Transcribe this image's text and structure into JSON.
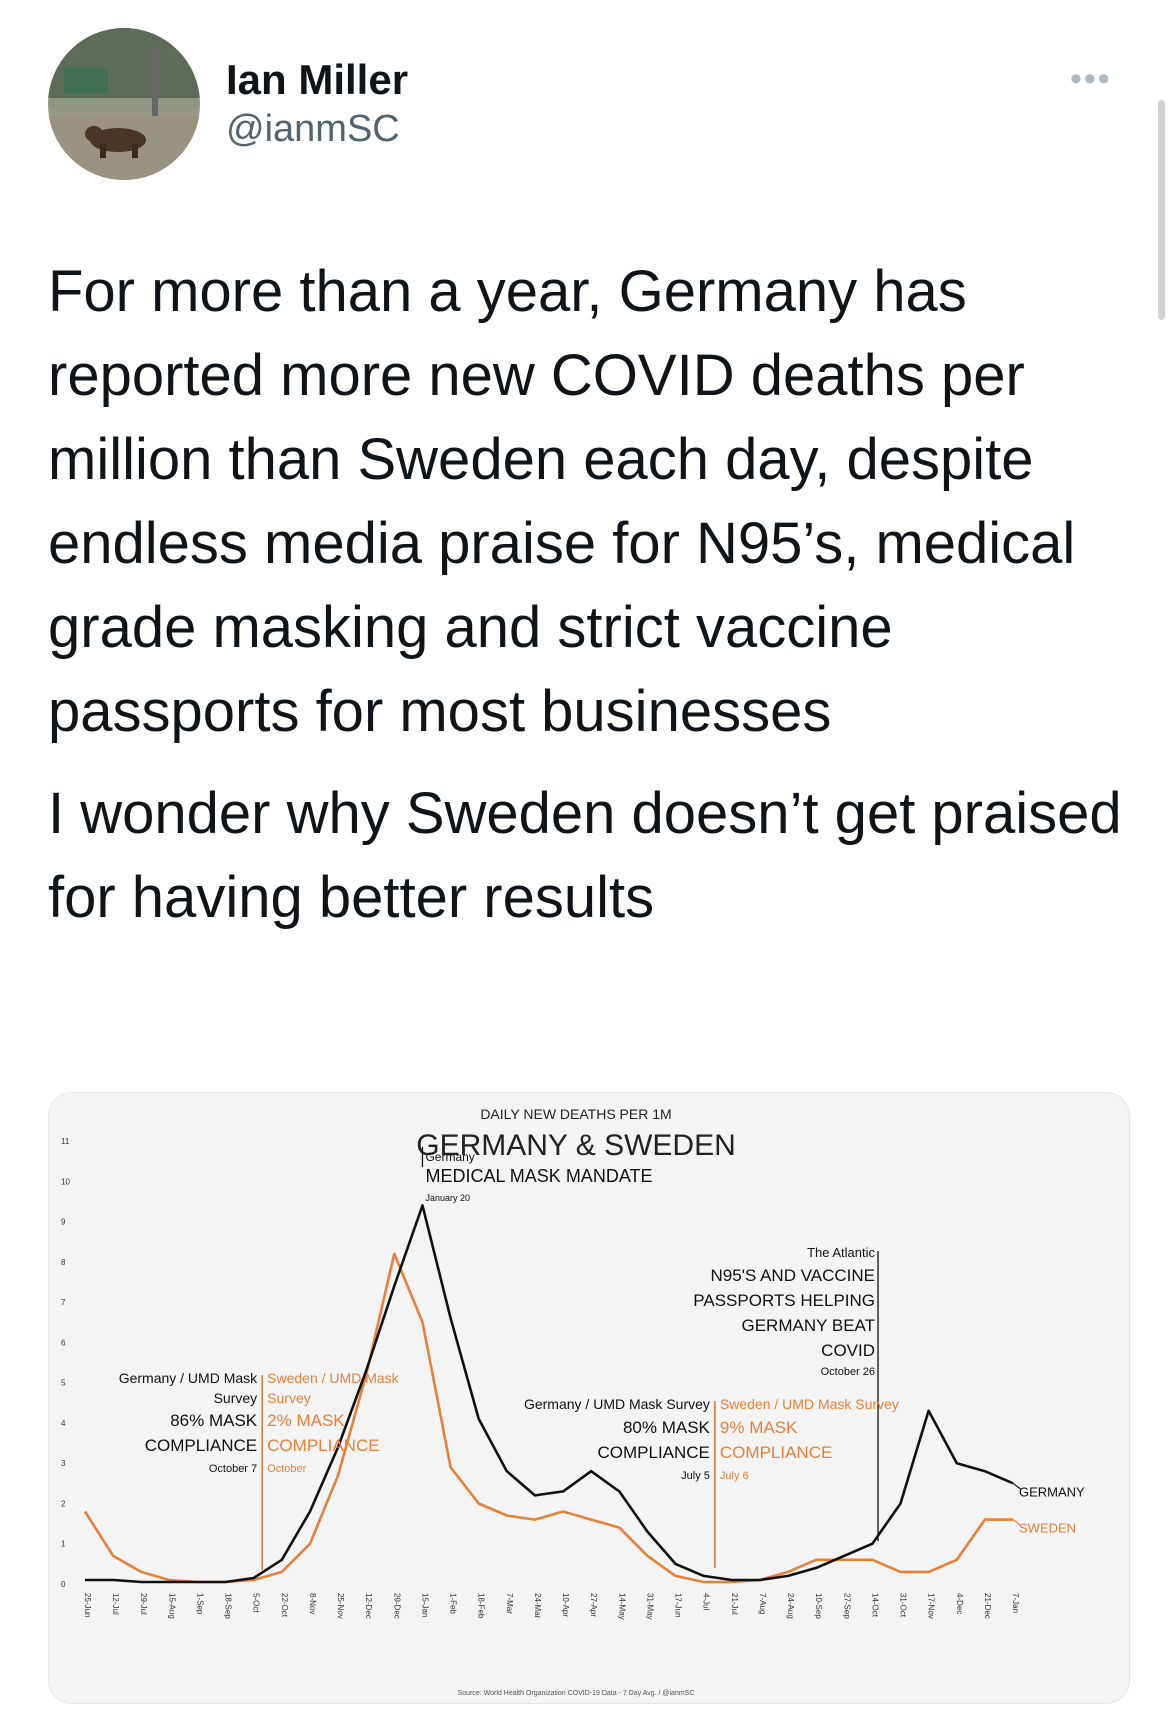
{
  "tweet": {
    "author_name": "Ian Miller",
    "author_handle": "@ianmSC",
    "more_icon": "more-horizontal-icon",
    "paragraphs": [
      "For more than a year, Germany has reported more new COVID deaths per million than Sweden each day, despite endless media praise for N95’s, medical grade masking and strict vaccine passports for most businesses",
      "I wonder why Sweden doesn’t get praised for having better results"
    ]
  },
  "chart_data": {
    "type": "line",
    "supertitle": "DAILY NEW DEATHS PER 1M",
    "title": "GERMANY & SWEDEN",
    "source": "Source: World Health Organization COVID-19 Data - 7 Day Avg. / @ianmSC",
    "ylim": [
      0,
      11
    ],
    "yticks": [
      "0",
      "1",
      "2",
      "3",
      "4",
      "5",
      "6",
      "7",
      "8",
      "9",
      "10",
      "11"
    ],
    "grid": false,
    "colors": {
      "Germany": "#111111",
      "Sweden": "#e8803a"
    },
    "categories": [
      "25-Jun",
      "12-Jul",
      "29-Jul",
      "15-Aug",
      "1-Sep",
      "18-Sep",
      "5-Oct",
      "22-Oct",
      "8-Nov",
      "25-Nov",
      "12-Dec",
      "29-Dec",
      "15-Jan",
      "1-Feb",
      "18-Feb",
      "7-Mar",
      "24-Mar",
      "10-Apr",
      "27-Apr",
      "14-May",
      "31-May",
      "17-Jun",
      "4-Jul",
      "21-Jul",
      "7-Aug",
      "24-Aug",
      "10-Sep",
      "27-Sep",
      "14-Oct",
      "31-Oct",
      "17-Nov",
      "4-Dec",
      "21-Dec",
      "7-Jan"
    ],
    "series": [
      {
        "name": "Germany",
        "end_label": "GERMANY",
        "values": [
          0.1,
          0.1,
          0.05,
          0.05,
          0.05,
          0.05,
          0.15,
          0.6,
          1.8,
          3.4,
          5.3,
          7.4,
          9.4,
          6.6,
          4.1,
          2.8,
          2.2,
          2.3,
          2.8,
          2.3,
          1.3,
          0.5,
          0.2,
          0.1,
          0.1,
          0.2,
          0.4,
          0.7,
          1.0,
          2.0,
          4.3,
          3.0,
          2.8,
          2.5
        ]
      },
      {
        "name": "Sweden",
        "end_label": "SWEDEN",
        "values": [
          1.8,
          0.7,
          0.3,
          0.1,
          0.05,
          0.05,
          0.1,
          0.3,
          1.0,
          2.7,
          5.2,
          8.2,
          6.5,
          2.9,
          2.0,
          1.7,
          1.6,
          1.8,
          1.6,
          1.4,
          0.7,
          0.2,
          0.05,
          0.05,
          0.1,
          0.3,
          0.6,
          0.6,
          0.6,
          0.3,
          0.3,
          0.6,
          1.6,
          1.6
        ]
      }
    ],
    "annotations": [
      {
        "id": "germany_umd_1",
        "color": "#111111",
        "at": 6.3,
        "lines": [
          "Germany / UMD Mask",
          "Survey",
          "86% MASK",
          "COMPLIANCE",
          "October 7"
        ]
      },
      {
        "id": "sweden_umd_1",
        "color": "#e8803a",
        "at": 6.3,
        "lines": [
          "Sweden / UMD Mask",
          "Survey",
          "2% MASK",
          "COMPLIANCE",
          "October"
        ]
      },
      {
        "id": "germany_medical",
        "color": "#111111",
        "at": 12.0,
        "lines": [
          "Germany",
          "MEDICAL MASK MANDATE",
          "January 20"
        ]
      },
      {
        "id": "germany_umd_2",
        "color": "#111111",
        "at": 22.4,
        "lines": [
          "Germany / UMD Mask Survey",
          "80% MASK",
          "COMPLIANCE",
          "July 5"
        ]
      },
      {
        "id": "sweden_umd_2",
        "color": "#e8803a",
        "at": 22.4,
        "lines": [
          "Sweden / UMD Mask Survey",
          "9% MASK",
          "COMPLIANCE",
          "July 6"
        ]
      },
      {
        "id": "atlantic",
        "color": "#111111",
        "at": 28.2,
        "lines": [
          "The Atlantic",
          "N95'S AND VACCINE",
          "PASSPORTS HELPING",
          "GERMANY BEAT",
          "COVID",
          "October 26"
        ]
      }
    ]
  }
}
